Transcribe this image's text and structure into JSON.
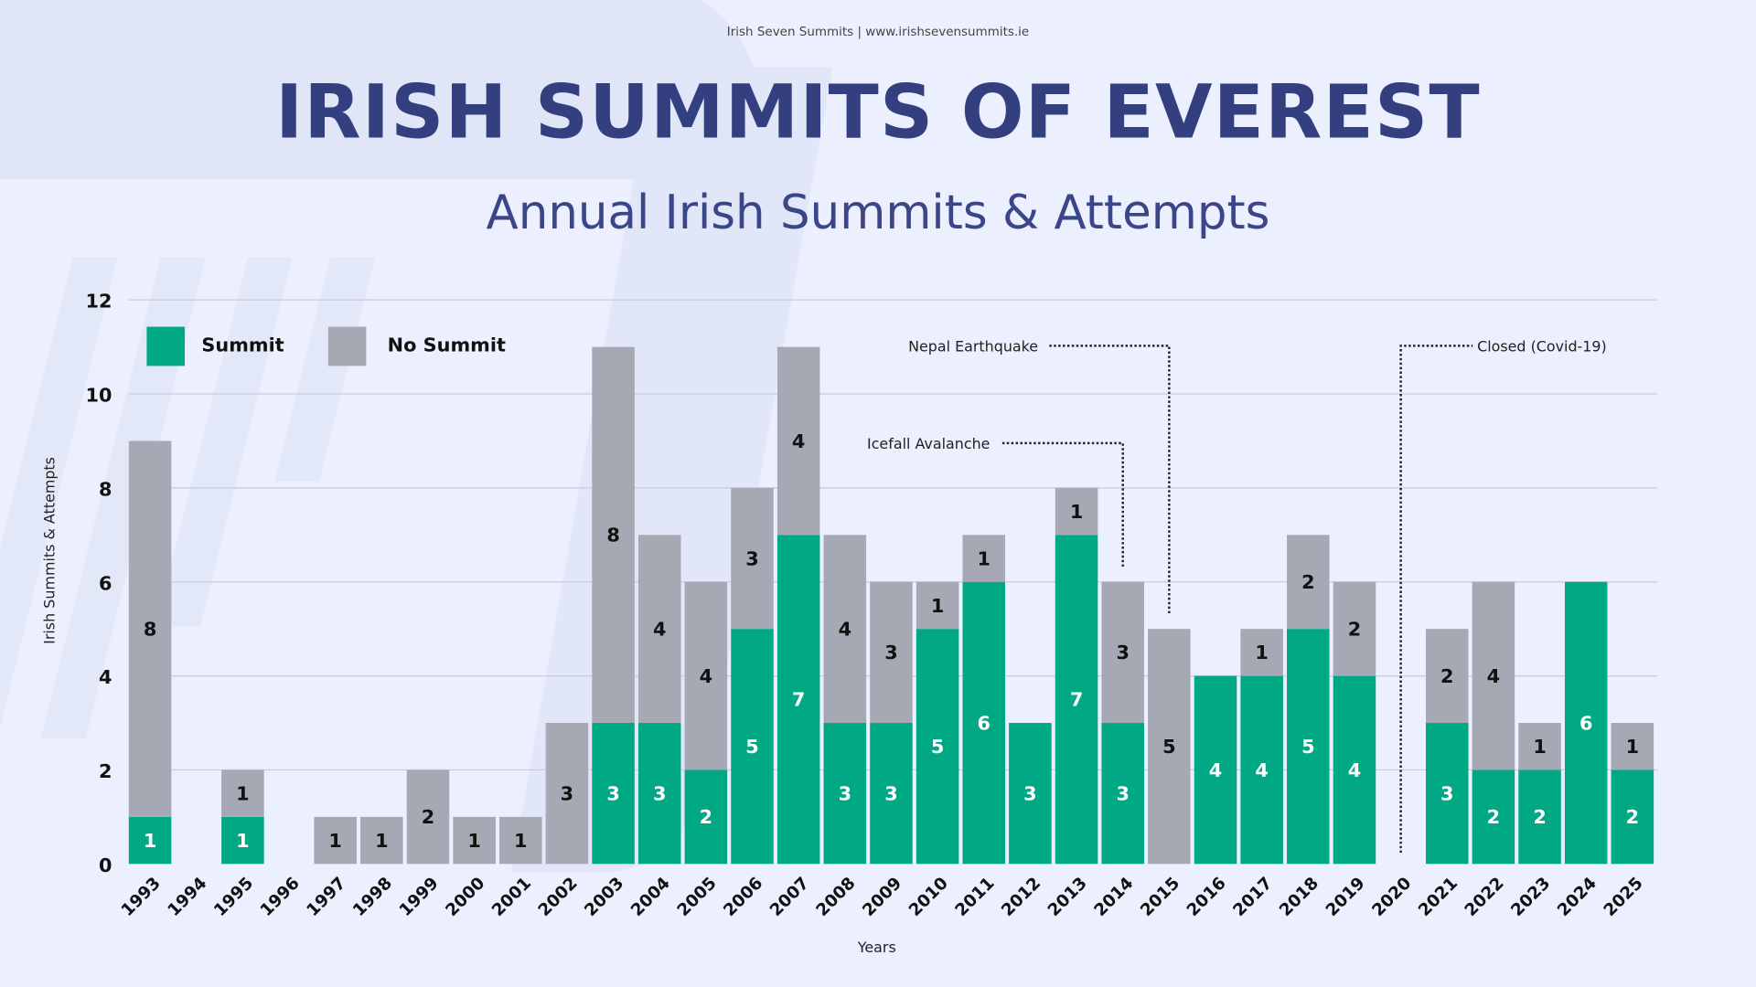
{
  "header": {
    "credit": "Irish Seven Summits | www.irishsevensummits.ie",
    "title": "IRISH SUMMITS OF EVEREST",
    "subtitle": "Annual Irish Summits & Attempts"
  },
  "colors": {
    "summit": "#00a884",
    "no_summit": "#a6a9b4",
    "grid": "#c9cbdb",
    "title": "#343f80"
  },
  "chart_data": {
    "type": "bar",
    "stacked": true,
    "title": "Annual Irish Summits & Attempts",
    "xlabel": "Years",
    "ylabel": "Irish Summits & Attempts",
    "ylim": [
      0,
      12
    ],
    "yticks": [
      0,
      2,
      4,
      6,
      8,
      10,
      12
    ],
    "grid": true,
    "legend_position": "top-left",
    "categories": [
      "1993",
      "1994",
      "1995",
      "1996",
      "1997",
      "1998",
      "1999",
      "2000",
      "2001",
      "2002",
      "2003",
      "2004",
      "2005",
      "2006",
      "2007",
      "2008",
      "2009",
      "2010",
      "2011",
      "2012",
      "2013",
      "2014",
      "2015",
      "2016",
      "2017",
      "2018",
      "2019",
      "2020",
      "2021",
      "2022",
      "2023",
      "2024",
      "2025"
    ],
    "series": [
      {
        "name": "Summit",
        "values": [
          1,
          0,
          1,
          0,
          0,
          0,
          0,
          0,
          0,
          0,
          3,
          3,
          2,
          5,
          7,
          3,
          3,
          5,
          6,
          3,
          7,
          3,
          0,
          4,
          4,
          5,
          4,
          0,
          3,
          2,
          2,
          6,
          2
        ]
      },
      {
        "name": "No Summit",
        "values": [
          8,
          0,
          1,
          0,
          1,
          1,
          2,
          1,
          1,
          3,
          8,
          4,
          4,
          3,
          4,
          4,
          3,
          1,
          1,
          0,
          1,
          3,
          5,
          0,
          1,
          2,
          2,
          0,
          2,
          4,
          1,
          0,
          1
        ]
      }
    ],
    "annotations": [
      {
        "text": "Icefall Avalanche",
        "year": "2014"
      },
      {
        "text": "Nepal Earthquake",
        "year": "2015"
      },
      {
        "text": "Closed (Covid-19)",
        "year": "2020"
      }
    ]
  }
}
